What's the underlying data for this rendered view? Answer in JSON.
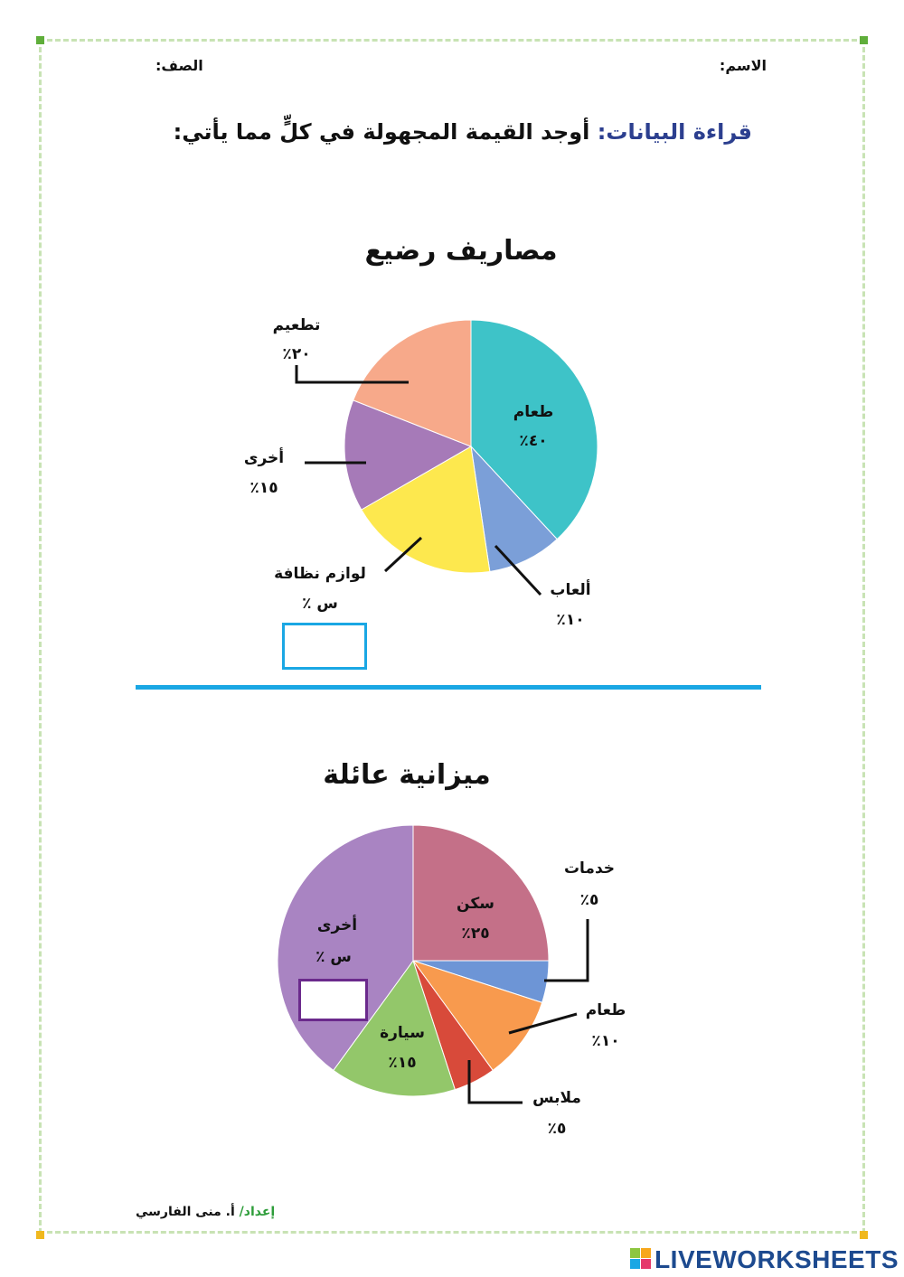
{
  "header": {
    "name_label": "الاسم:",
    "class_label": "الصف:"
  },
  "instruction": {
    "lead": "قراءة البيانات:",
    "text": "أوجد القيمة المجهولة في كلٍّ مما يأتي:"
  },
  "charts": [
    {
      "title": "مصاريف رضيع",
      "answer_placeholder": ""
    },
    {
      "title": "ميزانية عائلة",
      "answer_placeholder": ""
    }
  ],
  "footer": {
    "prefix": "إعداد/",
    "author": "أ. منى الفارسي"
  },
  "watermark": "LIVEWORKSHEETS",
  "colors": {
    "frame": "#c8e3b4",
    "divider": "#1aa7e4",
    "instruction_accent": "#2c3f8f",
    "box1_border": "#1aa7e4",
    "box2_border": "#6b2a8c"
  },
  "chart_data": [
    {
      "type": "pie",
      "title": "مصاريف رضيع",
      "slices": [
        {
          "name": "طعام",
          "label": "٤٠٪",
          "value": 40,
          "color": "#3ec3c8"
        },
        {
          "name": "ألعاب",
          "label": "١٠٪",
          "value": 10,
          "color": "#7b9fd8"
        },
        {
          "name": "لوازم نظافة",
          "label": "س ٪",
          "value": 20,
          "color": "#fde84e"
        },
        {
          "name": "أخرى",
          "label": "١٥٪",
          "value": 15,
          "color": "#a67ab8"
        },
        {
          "name": "تطعيم",
          "label": "٢٠٪",
          "value": 20,
          "color": "#f7a98a"
        }
      ]
    },
    {
      "type": "pie",
      "title": "ميزانية عائلة",
      "slices": [
        {
          "name": "سكن",
          "label": "٢٥٪",
          "value": 25,
          "color": "#c47088"
        },
        {
          "name": "خدمات",
          "label": "٥٪",
          "value": 5,
          "color": "#6d95d6"
        },
        {
          "name": "طعام",
          "label": "١٠٪",
          "value": 10,
          "color": "#f89a4e"
        },
        {
          "name": "ملابس",
          "label": "٥٪",
          "value": 5,
          "color": "#d84a3a"
        },
        {
          "name": "سيارة",
          "label": "١٥٪",
          "value": 15,
          "color": "#93c76a"
        },
        {
          "name": "أخرى",
          "label": "س ٪",
          "value": 40,
          "color": "#a984c2"
        }
      ]
    }
  ]
}
